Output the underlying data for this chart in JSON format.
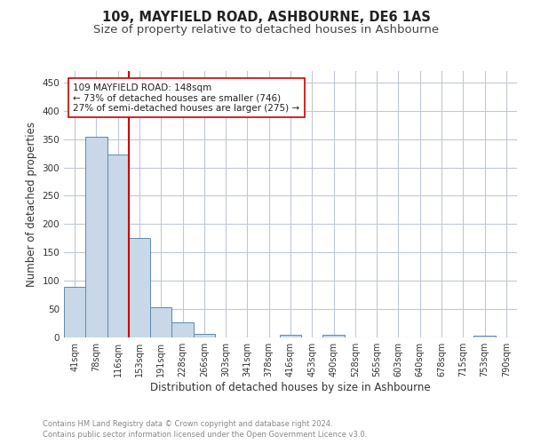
{
  "title": "109, MAYFIELD ROAD, ASHBOURNE, DE6 1AS",
  "subtitle": "Size of property relative to detached houses in Ashbourne",
  "xlabel": "Distribution of detached houses by size in Ashbourne",
  "ylabel": "Number of detached properties",
  "bar_labels": [
    "41sqm",
    "78sqm",
    "116sqm",
    "153sqm",
    "191sqm",
    "228sqm",
    "266sqm",
    "303sqm",
    "341sqm",
    "378sqm",
    "416sqm",
    "453sqm",
    "490sqm",
    "528sqm",
    "565sqm",
    "603sqm",
    "640sqm",
    "678sqm",
    "715sqm",
    "753sqm",
    "790sqm"
  ],
  "bar_values": [
    89,
    354,
    323,
    175,
    53,
    27,
    7,
    0,
    0,
    0,
    4,
    0,
    4,
    0,
    0,
    0,
    0,
    0,
    0,
    3,
    0
  ],
  "bar_color": "#c8d8e8",
  "bar_edge_color": "#5a8ab0",
  "vline_x": 2.5,
  "vline_color": "#cc0000",
  "annotation_text": "109 MAYFIELD ROAD: 148sqm\n← 73% of detached houses are smaller (746)\n27% of semi-detached houses are larger (275) →",
  "annotation_box_color": "#ffffff",
  "annotation_box_edge": "#cc0000",
  "ylim": [
    0,
    470
  ],
  "yticks": [
    0,
    50,
    100,
    150,
    200,
    250,
    300,
    350,
    400,
    450
  ],
  "footer_line1": "Contains HM Land Registry data © Crown copyright and database right 2024.",
  "footer_line2": "Contains public sector information licensed under the Open Government Licence v3.0.",
  "bg_color": "#ffffff",
  "grid_color": "#c0c8d8",
  "title_fontsize": 10.5,
  "subtitle_fontsize": 9.5,
  "tick_label_fontsize": 7,
  "ylabel_fontsize": 8.5,
  "xlabel_fontsize": 8.5,
  "annotation_fontsize": 7.5,
  "footer_fontsize": 6.0
}
